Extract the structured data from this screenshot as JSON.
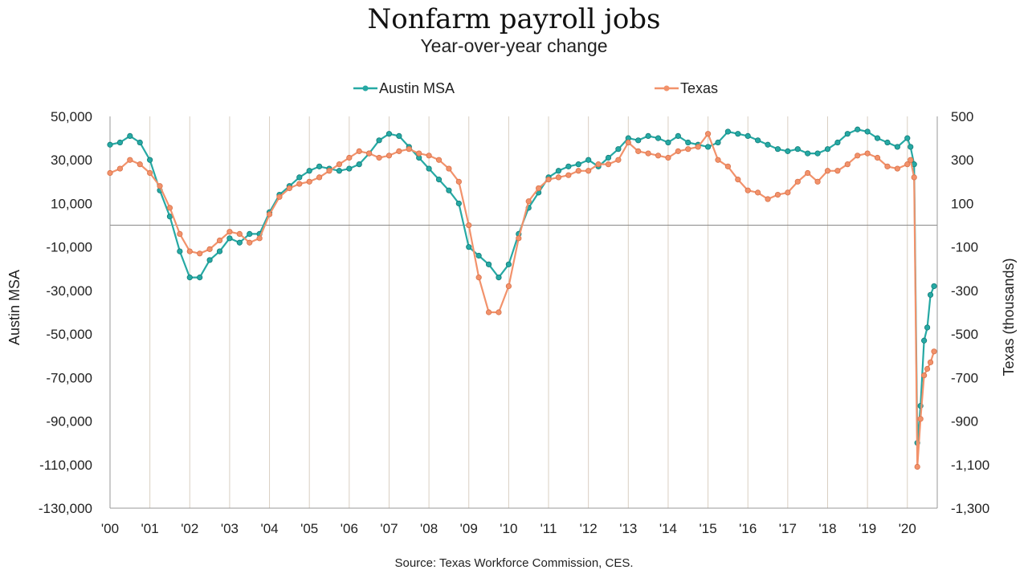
{
  "chart_data": {
    "type": "line",
    "title": "Nonfarm payroll jobs",
    "subtitle": "Year-over-year change",
    "footnote": "Source: Texas Workforce Commission, CES.",
    "ylabel_left": "Austin MSA",
    "ylabel_right": "Texas (thousands)",
    "y_left": {
      "min": -130000,
      "max": 50000,
      "ticks": [
        50000,
        30000,
        10000,
        -10000,
        -30000,
        -50000,
        -70000,
        -90000,
        -110000,
        -130000
      ],
      "tick_labels": [
        "50,000",
        "30,000",
        "10,000",
        "-10,000",
        "-30,000",
        "-50,000",
        "-70,000",
        "-90,000",
        "-110,000",
        "-130,000"
      ]
    },
    "y_right": {
      "min": -1300,
      "max": 500,
      "ticks": [
        500,
        300,
        100,
        -100,
        -300,
        -500,
        -700,
        -900,
        -1100,
        -1300
      ],
      "tick_labels": [
        "500",
        "300",
        "100",
        "-100",
        "-300",
        "-500",
        "-700",
        "-900",
        "-1,100",
        "-1,300"
      ]
    },
    "x_range": [
      2000,
      2020.75
    ],
    "x_tick_labels": [
      "'00",
      "'01",
      "'02",
      "'03",
      "'04",
      "'05",
      "'06",
      "'07",
      "'08",
      "'09",
      "'10",
      "'11",
      "'12",
      "'13",
      "'14",
      "'15",
      "'16",
      "'17",
      "'18",
      "'19",
      "'20"
    ],
    "x_tick_positions": [
      2000,
      2001,
      2002,
      2003,
      2004,
      2005,
      2006,
      2007,
      2008,
      2009,
      2010,
      2011,
      2012,
      2013,
      2014,
      2015,
      2016,
      2017,
      2018,
      2019,
      2020
    ],
    "grid": {
      "vertical": true,
      "horizontal": false
    },
    "legend_position": "top-center",
    "series": [
      {
        "name": "Austin MSA",
        "axis": "left",
        "color": "#26a9a4",
        "x": [
          2000.0,
          2000.25,
          2000.5,
          2000.75,
          2001.0,
          2001.25,
          2001.5,
          2001.75,
          2002.0,
          2002.25,
          2002.5,
          2002.75,
          2003.0,
          2003.25,
          2003.5,
          2003.75,
          2004.0,
          2004.25,
          2004.5,
          2004.75,
          2005.0,
          2005.25,
          2005.5,
          2005.75,
          2006.0,
          2006.25,
          2006.5,
          2006.75,
          2007.0,
          2007.25,
          2007.5,
          2007.75,
          2008.0,
          2008.25,
          2008.5,
          2008.75,
          2009.0,
          2009.25,
          2009.5,
          2009.75,
          2010.0,
          2010.25,
          2010.5,
          2010.75,
          2011.0,
          2011.25,
          2011.5,
          2011.75,
          2012.0,
          2012.25,
          2012.5,
          2012.75,
          2013.0,
          2013.25,
          2013.5,
          2013.75,
          2014.0,
          2014.25,
          2014.5,
          2014.75,
          2015.0,
          2015.25,
          2015.5,
          2015.75,
          2016.0,
          2016.25,
          2016.5,
          2016.75,
          2017.0,
          2017.25,
          2017.5,
          2017.75,
          2018.0,
          2018.25,
          2018.5,
          2018.75,
          2019.0,
          2019.25,
          2019.5,
          2019.75,
          2020.0,
          2020.08,
          2020.17,
          2020.25,
          2020.33,
          2020.42,
          2020.5,
          2020.58,
          2020.67
        ],
        "values": [
          37000,
          38000,
          41000,
          38000,
          30000,
          16000,
          4000,
          -12000,
          -24000,
          -24000,
          -16000,
          -12000,
          -6000,
          -8000,
          -4000,
          -4000,
          6000,
          14000,
          18000,
          22000,
          25000,
          27000,
          26000,
          25000,
          26000,
          28000,
          33000,
          39000,
          42000,
          41000,
          36000,
          31000,
          26000,
          21000,
          16000,
          10000,
          -10000,
          -14000,
          -18000,
          -24000,
          -18000,
          -4000,
          8000,
          15000,
          22000,
          25000,
          27000,
          28000,
          30000,
          27000,
          31000,
          35000,
          40000,
          39000,
          41000,
          40000,
          38000,
          41000,
          38000,
          37000,
          36000,
          38000,
          43000,
          42000,
          41000,
          39000,
          37000,
          35000,
          34000,
          35000,
          33000,
          33000,
          35000,
          38000,
          42000,
          44000,
          43000,
          40000,
          38000,
          36000,
          40000,
          36000,
          28000,
          -100000,
          -83000,
          -53000,
          -47000,
          -32000,
          -28000
        ]
      },
      {
        "name": "Texas",
        "axis": "right",
        "color": "#f2926b",
        "x": [
          2000.0,
          2000.25,
          2000.5,
          2000.75,
          2001.0,
          2001.25,
          2001.5,
          2001.75,
          2002.0,
          2002.25,
          2002.5,
          2002.75,
          2003.0,
          2003.25,
          2003.5,
          2003.75,
          2004.0,
          2004.25,
          2004.5,
          2004.75,
          2005.0,
          2005.25,
          2005.5,
          2005.75,
          2006.0,
          2006.25,
          2006.5,
          2006.75,
          2007.0,
          2007.25,
          2007.5,
          2007.75,
          2008.0,
          2008.25,
          2008.5,
          2008.75,
          2009.0,
          2009.25,
          2009.5,
          2009.75,
          2010.0,
          2010.25,
          2010.5,
          2010.75,
          2011.0,
          2011.25,
          2011.5,
          2011.75,
          2012.0,
          2012.25,
          2012.5,
          2012.75,
          2013.0,
          2013.25,
          2013.5,
          2013.75,
          2014.0,
          2014.25,
          2014.5,
          2014.75,
          2015.0,
          2015.25,
          2015.5,
          2015.75,
          2016.0,
          2016.25,
          2016.5,
          2016.75,
          2017.0,
          2017.25,
          2017.5,
          2017.75,
          2018.0,
          2018.25,
          2018.5,
          2018.75,
          2019.0,
          2019.25,
          2019.5,
          2019.75,
          2020.0,
          2020.08,
          2020.17,
          2020.25,
          2020.33,
          2020.42,
          2020.5,
          2020.58,
          2020.67
        ],
        "values": [
          240,
          260,
          300,
          280,
          240,
          180,
          80,
          -40,
          -120,
          -130,
          -110,
          -70,
          -30,
          -40,
          -80,
          -60,
          50,
          130,
          170,
          190,
          200,
          220,
          250,
          280,
          310,
          340,
          330,
          310,
          320,
          340,
          350,
          330,
          320,
          300,
          260,
          200,
          0,
          -240,
          -400,
          -400,
          -280,
          -60,
          110,
          170,
          210,
          220,
          230,
          250,
          250,
          280,
          280,
          300,
          380,
          340,
          330,
          320,
          310,
          340,
          350,
          360,
          420,
          300,
          270,
          210,
          160,
          150,
          120,
          140,
          150,
          200,
          240,
          200,
          250,
          250,
          280,
          320,
          330,
          310,
          270,
          260,
          280,
          300,
          220,
          -1110,
          -890,
          -690,
          -660,
          -630,
          -580
        ]
      }
    ]
  }
}
